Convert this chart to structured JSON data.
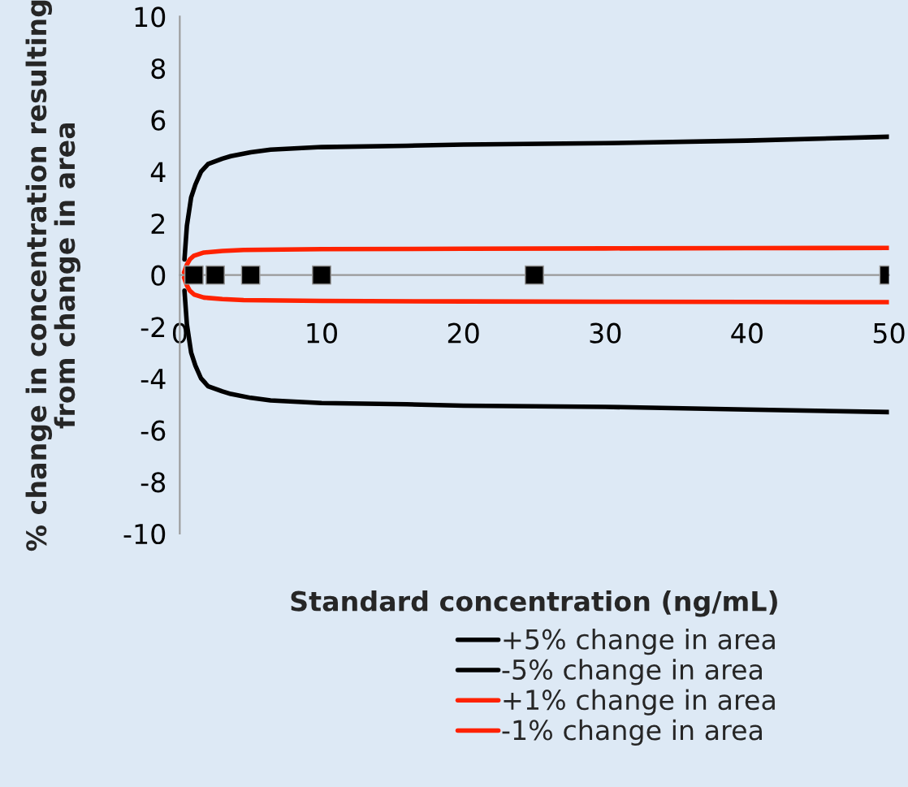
{
  "chart_data": {
    "type": "line",
    "xlabel": "Standard concentration (ng/mL)",
    "ylabel": "% change in concentration resulting\nfrom change in area",
    "xlim": [
      0,
      50
    ],
    "ylim": [
      -10,
      10
    ],
    "xticks": [
      0,
      10,
      20,
      30,
      40,
      50
    ],
    "yticks": [
      -10,
      -8,
      -6,
      -4,
      -2,
      0,
      2,
      4,
      6,
      8,
      10
    ],
    "grid": false,
    "legend": "bottom",
    "line_style": "solid",
    "series": [
      {
        "name": "+5% change in area",
        "color": "#000000",
        "x": [
          0.33,
          0.5,
          0.8,
          1.1,
          1.5,
          2.0,
          3.0,
          3.6,
          5,
          6.4,
          10,
          16,
          20,
          30,
          40,
          50
        ],
        "values": [
          0.6,
          1.9,
          3.0,
          3.5,
          4.0,
          4.3,
          4.5,
          4.6,
          4.75,
          4.85,
          4.95,
          5.0,
          5.05,
          5.1,
          5.2,
          5.35
        ]
      },
      {
        "name": "-5% change in area",
        "color": "#000000",
        "x": [
          0.33,
          0.5,
          0.8,
          1.1,
          1.5,
          2.0,
          3.0,
          3.6,
          5,
          6.4,
          10,
          16,
          20,
          30,
          40,
          50
        ],
        "values": [
          -0.6,
          -1.9,
          -3.0,
          -3.5,
          -4.0,
          -4.3,
          -4.5,
          -4.6,
          -4.75,
          -4.85,
          -4.95,
          -5.0,
          -5.05,
          -5.1,
          -5.2,
          -5.3
        ]
      },
      {
        "name": "+1% change in area",
        "color": "#ff2200",
        "x": [
          0.3,
          0.5,
          0.7,
          1.0,
          1.7,
          3.0,
          4.5,
          10,
          20,
          30,
          40,
          50
        ],
        "values": [
          0.1,
          0.4,
          0.6,
          0.75,
          0.87,
          0.93,
          0.97,
          1.0,
          1.02,
          1.03,
          1.04,
          1.05
        ]
      },
      {
        "name": "-1% change in area",
        "color": "#ff2200",
        "x": [
          0.3,
          0.5,
          0.7,
          1.0,
          1.7,
          3.0,
          4.5,
          10,
          20,
          30,
          40,
          50
        ],
        "values": [
          -0.1,
          -0.4,
          -0.6,
          -0.75,
          -0.87,
          -0.93,
          -0.97,
          -1.0,
          -1.02,
          -1.03,
          -1.04,
          -1.05
        ]
      },
      {
        "type": "scatter",
        "marker": "square",
        "color": "#000000",
        "x": [
          1,
          2.5,
          5,
          10,
          25,
          50
        ],
        "values": [
          0,
          0,
          0,
          0,
          0,
          0
        ]
      }
    ]
  }
}
